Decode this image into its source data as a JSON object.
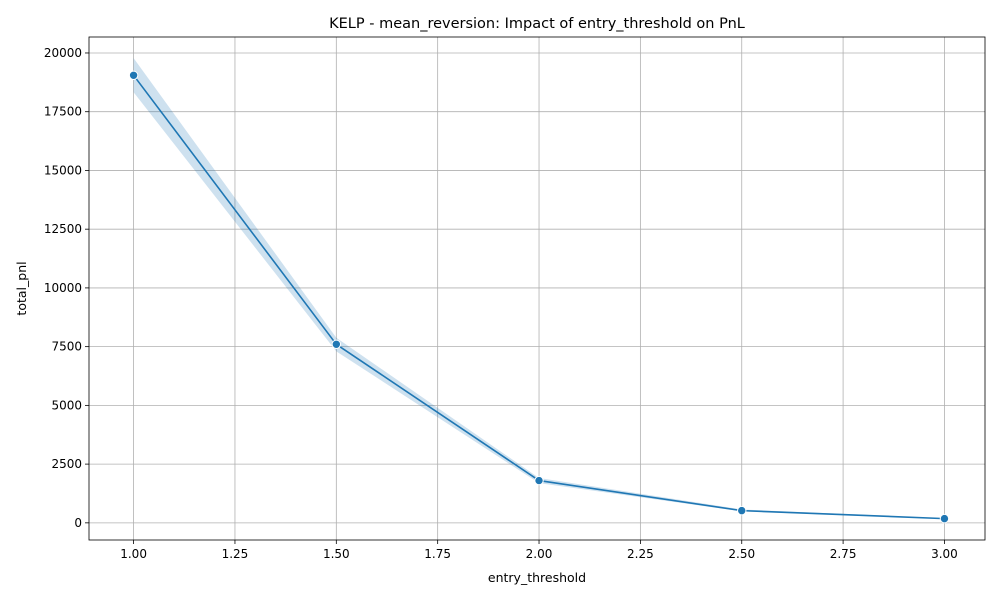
{
  "chart_data": {
    "type": "line",
    "title": "KELP - mean_reversion: Impact of entry_threshold on PnL",
    "xlabel": "entry_threshold",
    "ylabel": "total_pnl",
    "x_ticks": [
      1.0,
      1.25,
      1.5,
      1.75,
      2.0,
      2.25,
      2.5,
      2.75,
      3.0
    ],
    "x_tick_labels": [
      "1.00",
      "1.25",
      "1.50",
      "1.75",
      "2.00",
      "2.25",
      "2.50",
      "2.75",
      "3.00"
    ],
    "y_ticks": [
      0,
      2500,
      5000,
      7500,
      10000,
      12500,
      15000,
      17500,
      20000
    ],
    "y_tick_labels": [
      "0",
      "2500",
      "5000",
      "7500",
      "10000",
      "12500",
      "15000",
      "17500",
      "20000"
    ],
    "xlim": [
      0.89,
      3.1
    ],
    "ylim": [
      -730,
      20680
    ],
    "grid": true,
    "legend": false,
    "series": [
      {
        "x": [
          1.0,
          1.5,
          2.0,
          2.5,
          3.0
        ],
        "y": [
          19050,
          7600,
          1800,
          520,
          180
        ],
        "ci_lower": [
          18330,
          7300,
          1690,
          490,
          170
        ],
        "ci_upper": [
          19780,
          7880,
          1910,
          570,
          195
        ]
      }
    ],
    "colors": {
      "line": "#1f77b4",
      "band": "#1f77b4",
      "grid": "#b0b0b0",
      "axes": "#000000"
    }
  }
}
